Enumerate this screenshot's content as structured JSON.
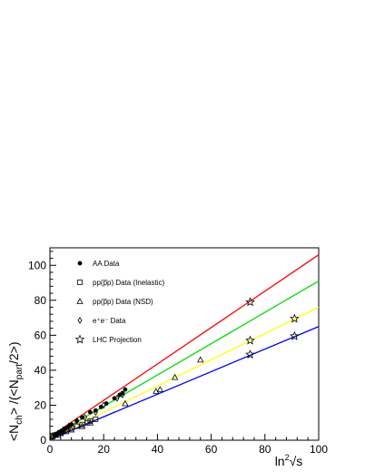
{
  "chart_data": {
    "type": "scatter",
    "x_axis": {
      "title_main": "ln",
      "title_sup": "2",
      "title_root": "√s",
      "range": [
        0,
        100
      ],
      "ticks": [
        0,
        20,
        40,
        60,
        80,
        100
      ]
    },
    "y_axis": {
      "title_lead": "<N",
      "title_sub1": "ch",
      "title_mid": "> /(<N",
      "title_sub2": "part",
      "title_tail": "/2>)",
      "range": [
        0,
        110
      ],
      "ticks": [
        0,
        20,
        40,
        60,
        80,
        100
      ]
    },
    "legend_position": "top-left",
    "legend": [
      {
        "key": "aa",
        "label": "AA Data",
        "marker": "filled-circle"
      },
      {
        "key": "pp_inel",
        "label": "pp(p̅p) Data (Inelastic)",
        "marker": "open-square"
      },
      {
        "key": "pp_nsd",
        "label": "pp(p̅p) Data (NSD)",
        "marker": "open-triangle"
      },
      {
        "key": "ee",
        "label": "e⁺e⁻ Data",
        "marker": "open-diamond"
      },
      {
        "key": "lhc",
        "label": "LHC Projection",
        "marker": "open-star"
      }
    ],
    "fit_lines": [
      {
        "color": "#ff0000",
        "x": [
          0,
          100
        ],
        "y": [
          2,
          106
        ]
      },
      {
        "color": "#00dd00",
        "x": [
          0,
          100
        ],
        "y": [
          1.5,
          91
        ]
      },
      {
        "color": "#ffff00",
        "x": [
          0,
          100
        ],
        "y": [
          1,
          76
        ]
      },
      {
        "color": "#0000ff",
        "x": [
          0,
          100
        ],
        "y": [
          0.5,
          65
        ]
      }
    ],
    "series": [
      {
        "key": "aa",
        "marker": "filled-circle",
        "x": [
          2,
          3,
          4,
          5,
          6,
          7,
          8,
          10,
          12,
          15,
          17,
          19,
          21,
          24,
          26,
          27,
          28
        ],
        "y": [
          3,
          4,
          5,
          6,
          7,
          8,
          9,
          11,
          13,
          16,
          17,
          19,
          21,
          24,
          26,
          27,
          29
        ]
      },
      {
        "key": "pp_inel",
        "marker": "open-square",
        "x": [
          1,
          2,
          3,
          4,
          5,
          6,
          8,
          10,
          12,
          14,
          15,
          17
        ],
        "y": [
          2,
          3,
          3,
          4,
          5,
          6,
          7,
          8,
          9,
          10,
          11,
          12
        ]
      },
      {
        "key": "pp_nsd",
        "marker": "open-triangle",
        "x": [
          2,
          4,
          6,
          8,
          12,
          15,
          28,
          39.5,
          41,
          46.5,
          56
        ],
        "y": [
          3,
          4,
          5,
          6,
          8,
          10,
          21,
          28,
          29,
          36,
          46
        ]
      },
      {
        "key": "ee",
        "marker": "open-diamond",
        "x": [
          1,
          2,
          3,
          5,
          7,
          10,
          13,
          17,
          20,
          25,
          27
        ],
        "y": [
          2,
          3,
          4,
          6,
          8,
          11,
          13,
          16,
          20,
          24,
          26
        ]
      },
      {
        "key": "lhc",
        "marker": "open-star",
        "x": [
          74.5,
          74.5,
          74.5,
          91,
          91
        ],
        "y": [
          79,
          57,
          49,
          69.5,
          59.5
        ]
      }
    ]
  }
}
